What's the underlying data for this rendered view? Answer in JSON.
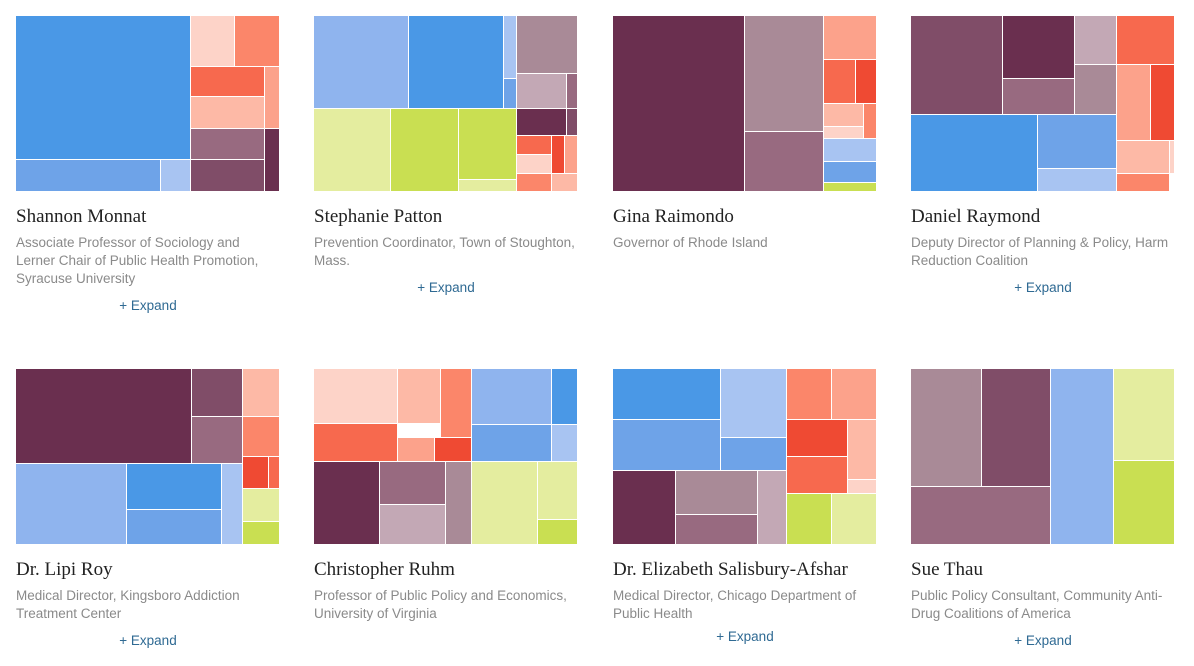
{
  "palette": {
    "blue_dark": "#4a98e6",
    "blue_mid": "#6ea3e8",
    "blue_light": "#8fb4ee",
    "blue_pale": "#a8c4f2",
    "plum_dark": "#6a2f4f",
    "plum": "#804d68",
    "mauve": "#986a80",
    "mauve_light": "#a98a97",
    "mauve_pale": "#c3a8b5",
    "red": "#ef4a33",
    "coral": "#f7694e",
    "salmon": "#fb866a",
    "peach": "#fca28b",
    "peach_light": "#fdb9a6",
    "peach_pale": "#fdd3c8",
    "green": "#c9df52",
    "green_light": "#e4ed9f"
  },
  "people": [
    {
      "name": "Shannon Monnat",
      "role": "Associate Professor of Sociology and Lerner Chair of Public Health Promotion, Syracuse University",
      "expand": "+ Expand"
    },
    {
      "name": "Stephanie Patton",
      "role": "Prevention Coordinator, Town of Stoughton, Mass.",
      "expand": "+ Expand"
    },
    {
      "name": "Gina Raimondo",
      "role": "Governor of Rhode Island",
      "expand": ""
    },
    {
      "name": "Daniel Raymond",
      "role": "Deputy Director of Planning & Policy, Harm Reduction Coalition",
      "expand": "+ Expand"
    },
    {
      "name": "Dr. Lipi Roy",
      "role": "Medical Director, Kingsboro Addiction Treatment Center",
      "expand": "+ Expand"
    },
    {
      "name": "Christopher Ruhm",
      "role": "Professor of Public Policy and Economics, University of Virginia",
      "expand": "+ Expand"
    },
    {
      "name": "Dr. Elizabeth Salisbury-Afshar",
      "role": "Medical Director, Chicago Department of Public Health",
      "expand": "+ Expand"
    },
    {
      "name": "Sue Thau",
      "role": "Public Policy Consultant, Community Anti-Drug Coalitions of America",
      "expand": "+ Expand"
    }
  ],
  "chart_data": [
    {
      "type": "treemap",
      "cells": [
        {
          "c": "blue_dark",
          "x": 0,
          "y": 0,
          "w": 0.664,
          "h": 0.82
        },
        {
          "c": "blue_mid",
          "x": 0,
          "y": 0.82,
          "w": 0.551,
          "h": 0.18
        },
        {
          "c": "blue_pale",
          "x": 0.551,
          "y": 0.82,
          "w": 0.113,
          "h": 0.18
        },
        {
          "c": "peach_pale",
          "x": 0.664,
          "y": 0,
          "w": 0.166,
          "h": 0.29
        },
        {
          "c": "salmon",
          "x": 0.83,
          "y": 0,
          "w": 0.17,
          "h": 0.29
        },
        {
          "c": "coral",
          "x": 0.664,
          "y": 0.29,
          "w": 0.28,
          "h": 0.17
        },
        {
          "c": "peach",
          "x": 0.944,
          "y": 0.29,
          "w": 0.056,
          "h": 0.35
        },
        {
          "c": "peach_light",
          "x": 0.664,
          "y": 0.46,
          "w": 0.28,
          "h": 0.18
        },
        {
          "c": "mauve",
          "x": 0.664,
          "y": 0.64,
          "w": 0.28,
          "h": 0.18
        },
        {
          "c": "plum",
          "x": 0.664,
          "y": 0.82,
          "w": 0.28,
          "h": 0.18
        },
        {
          "c": "plum_dark",
          "x": 0.944,
          "y": 0.64,
          "w": 0.056,
          "h": 0.36
        }
      ]
    },
    {
      "type": "treemap",
      "cells": [
        {
          "c": "blue_light",
          "x": 0,
          "y": 0,
          "w": 0.36,
          "h": 0.53
        },
        {
          "c": "blue_dark",
          "x": 0.36,
          "y": 0,
          "w": 0.36,
          "h": 0.53
        },
        {
          "c": "blue_pale",
          "x": 0.72,
          "y": 0,
          "w": 0.05,
          "h": 0.36
        },
        {
          "c": "blue_mid",
          "x": 0.72,
          "y": 0.36,
          "w": 0.05,
          "h": 0.17
        },
        {
          "c": "green_light",
          "x": 0,
          "y": 0.53,
          "w": 0.29,
          "h": 0.47
        },
        {
          "c": "green",
          "x": 0.29,
          "y": 0.53,
          "w": 0.26,
          "h": 0.47
        },
        {
          "c": "green",
          "x": 0.55,
          "y": 0.53,
          "w": 0.22,
          "h": 0.4
        },
        {
          "c": "green_light",
          "x": 0.55,
          "y": 0.93,
          "w": 0.22,
          "h": 0.07
        },
        {
          "c": "mauve_light",
          "x": 0.77,
          "y": 0,
          "w": 0.23,
          "h": 0.33
        },
        {
          "c": "mauve_pale",
          "x": 0.77,
          "y": 0.33,
          "w": 0.19,
          "h": 0.2
        },
        {
          "c": "mauve",
          "x": 0.96,
          "y": 0.33,
          "w": 0.04,
          "h": 0.2
        },
        {
          "c": "plum_dark",
          "x": 0.77,
          "y": 0.53,
          "w": 0.19,
          "h": 0.15
        },
        {
          "c": "plum",
          "x": 0.96,
          "y": 0.53,
          "w": 0.04,
          "h": 0.15
        },
        {
          "c": "coral",
          "x": 0.77,
          "y": 0.68,
          "w": 0.13,
          "h": 0.11
        },
        {
          "c": "red",
          "x": 0.9,
          "y": 0.68,
          "w": 0.05,
          "h": 0.22
        },
        {
          "c": "peach",
          "x": 0.95,
          "y": 0.68,
          "w": 0.05,
          "h": 0.22
        },
        {
          "c": "peach_pale",
          "x": 0.77,
          "y": 0.79,
          "w": 0.13,
          "h": 0.11
        },
        {
          "c": "salmon",
          "x": 0.77,
          "y": 0.9,
          "w": 0.13,
          "h": 0.1
        },
        {
          "c": "peach_light",
          "x": 0.9,
          "y": 0.9,
          "w": 0.1,
          "h": 0.1
        }
      ]
    },
    {
      "type": "treemap",
      "cells": [
        {
          "c": "plum_dark",
          "x": 0,
          "y": 0,
          "w": 0.5,
          "h": 1
        },
        {
          "c": "mauve_light",
          "x": 0.5,
          "y": 0,
          "w": 0.3,
          "h": 0.66
        },
        {
          "c": "mauve",
          "x": 0.5,
          "y": 0.66,
          "w": 0.3,
          "h": 0.34
        },
        {
          "c": "peach",
          "x": 0.8,
          "y": 0,
          "w": 0.2,
          "h": 0.25
        },
        {
          "c": "coral",
          "x": 0.8,
          "y": 0.25,
          "w": 0.12,
          "h": 0.25
        },
        {
          "c": "red",
          "x": 0.92,
          "y": 0.25,
          "w": 0.08,
          "h": 0.25
        },
        {
          "c": "peach_light",
          "x": 0.8,
          "y": 0.5,
          "w": 0.15,
          "h": 0.13
        },
        {
          "c": "peach_pale",
          "x": 0.8,
          "y": 0.63,
          "w": 0.15,
          "h": 0.07
        },
        {
          "c": "salmon",
          "x": 0.95,
          "y": 0.5,
          "w": 0.05,
          "h": 0.2
        },
        {
          "c": "blue_pale",
          "x": 0.8,
          "y": 0.7,
          "w": 0.2,
          "h": 0.13
        },
        {
          "c": "blue_mid",
          "x": 0.8,
          "y": 0.83,
          "w": 0.2,
          "h": 0.12
        },
        {
          "c": "green",
          "x": 0.8,
          "y": 0.95,
          "w": 0.2,
          "h": 0.05
        }
      ]
    },
    {
      "type": "treemap",
      "cells": [
        {
          "c": "plum",
          "x": 0,
          "y": 0,
          "w": 0.35,
          "h": 0.56
        },
        {
          "c": "plum_dark",
          "x": 0.35,
          "y": 0,
          "w": 0.27,
          "h": 0.36
        },
        {
          "c": "mauve",
          "x": 0.35,
          "y": 0.36,
          "w": 0.27,
          "h": 0.2
        },
        {
          "c": "mauve_pale",
          "x": 0.62,
          "y": 0,
          "w": 0.16,
          "h": 0.28
        },
        {
          "c": "mauve_light",
          "x": 0.62,
          "y": 0.28,
          "w": 0.16,
          "h": 0.28
        },
        {
          "c": "coral",
          "x": 0.78,
          "y": 0,
          "w": 0.22,
          "h": 0.28
        },
        {
          "c": "peach",
          "x": 0.78,
          "y": 0.28,
          "w": 0.13,
          "h": 0.43
        },
        {
          "c": "red",
          "x": 0.91,
          "y": 0.28,
          "w": 0.09,
          "h": 0.43
        },
        {
          "c": "blue_dark",
          "x": 0,
          "y": 0.56,
          "w": 0.48,
          "h": 0.44
        },
        {
          "c": "blue_mid",
          "x": 0.48,
          "y": 0.56,
          "w": 0.3,
          "h": 0.31
        },
        {
          "c": "blue_pale",
          "x": 0.48,
          "y": 0.87,
          "w": 0.3,
          "h": 0.13
        },
        {
          "c": "peach_light",
          "x": 0.78,
          "y": 0.71,
          "w": 0.2,
          "h": 0.19
        },
        {
          "c": "peach_pale",
          "x": 0.98,
          "y": 0.71,
          "w": 0.02,
          "h": 0.19
        },
        {
          "c": "salmon",
          "x": 0.78,
          "y": 0.9,
          "w": 0.2,
          "h": 0.1
        }
      ]
    },
    {
      "type": "treemap",
      "cells": [
        {
          "c": "plum_dark",
          "x": 0,
          "y": 0,
          "w": 0.665,
          "h": 0.54
        },
        {
          "c": "plum",
          "x": 0.665,
          "y": 0,
          "w": 0.195,
          "h": 0.27
        },
        {
          "c": "mauve",
          "x": 0.665,
          "y": 0.27,
          "w": 0.195,
          "h": 0.27
        },
        {
          "c": "peach_light",
          "x": 0.86,
          "y": 0,
          "w": 0.14,
          "h": 0.27
        },
        {
          "c": "salmon",
          "x": 0.86,
          "y": 0.27,
          "w": 0.14,
          "h": 0.23
        },
        {
          "c": "red",
          "x": 0.86,
          "y": 0.5,
          "w": 0.1,
          "h": 0.18
        },
        {
          "c": "coral",
          "x": 0.96,
          "y": 0.5,
          "w": 0.04,
          "h": 0.18
        },
        {
          "c": "blue_light",
          "x": 0,
          "y": 0.54,
          "w": 0.42,
          "h": 0.46
        },
        {
          "c": "blue_dark",
          "x": 0.42,
          "y": 0.54,
          "w": 0.36,
          "h": 0.26
        },
        {
          "c": "blue_mid",
          "x": 0.42,
          "y": 0.8,
          "w": 0.36,
          "h": 0.2
        },
        {
          "c": "blue_pale",
          "x": 0.78,
          "y": 0.54,
          "w": 0.08,
          "h": 0.46
        },
        {
          "c": "green_light",
          "x": 0.86,
          "y": 0.68,
          "w": 0.14,
          "h": 0.19
        },
        {
          "c": "green",
          "x": 0.86,
          "y": 0.87,
          "w": 0.14,
          "h": 0.13
        }
      ]
    },
    {
      "type": "treemap",
      "cells": [
        {
          "c": "peach_pale",
          "x": 0,
          "y": 0,
          "w": 0.32,
          "h": 0.31
        },
        {
          "c": "peach_light",
          "x": 0.32,
          "y": 0,
          "w": 0.16,
          "h": 0.31
        },
        {
          "c": "salmon",
          "x": 0.48,
          "y": 0,
          "w": 0.12,
          "h": 0.39
        },
        {
          "c": "coral",
          "x": 0,
          "y": 0.31,
          "w": 0.32,
          "h": 0.22
        },
        {
          "c": "peach",
          "x": 0.32,
          "y": 0.39,
          "w": 0.14,
          "h": 0.14
        },
        {
          "c": "red",
          "x": 0.46,
          "y": 0.39,
          "w": 0.14,
          "h": 0.14
        },
        {
          "c": "blue_light",
          "x": 0.6,
          "y": 0,
          "w": 0.3,
          "h": 0.32
        },
        {
          "c": "blue_dark",
          "x": 0.9,
          "y": 0,
          "w": 0.1,
          "h": 0.32
        },
        {
          "c": "blue_mid",
          "x": 0.6,
          "y": 0.32,
          "w": 0.3,
          "h": 0.21
        },
        {
          "c": "blue_pale",
          "x": 0.9,
          "y": 0.32,
          "w": 0.1,
          "h": 0.21
        },
        {
          "c": "plum_dark",
          "x": 0,
          "y": 0.53,
          "w": 0.25,
          "h": 0.47
        },
        {
          "c": "mauve",
          "x": 0.25,
          "y": 0.53,
          "w": 0.25,
          "h": 0.24
        },
        {
          "c": "mauve_pale",
          "x": 0.25,
          "y": 0.77,
          "w": 0.25,
          "h": 0.23
        },
        {
          "c": "mauve_light",
          "x": 0.5,
          "y": 0.53,
          "w": 0.1,
          "h": 0.47
        },
        {
          "c": "green_light",
          "x": 0.6,
          "y": 0.53,
          "w": 0.25,
          "h": 0.47
        },
        {
          "c": "green_light",
          "x": 0.85,
          "y": 0.53,
          "w": 0.15,
          "h": 0.33
        },
        {
          "c": "green",
          "x": 0.85,
          "y": 0.86,
          "w": 0.15,
          "h": 0.14
        }
      ]
    },
    {
      "type": "treemap",
      "cells": [
        {
          "c": "blue_dark",
          "x": 0,
          "y": 0,
          "w": 0.41,
          "h": 0.29
        },
        {
          "c": "blue_mid",
          "x": 0,
          "y": 0.29,
          "w": 0.41,
          "h": 0.29
        },
        {
          "c": "blue_pale",
          "x": 0.41,
          "y": 0,
          "w": 0.25,
          "h": 0.39
        },
        {
          "c": "blue_mid",
          "x": 0.41,
          "y": 0.39,
          "w": 0.25,
          "h": 0.19
        },
        {
          "c": "plum_dark",
          "x": 0,
          "y": 0.58,
          "w": 0.24,
          "h": 0.42
        },
        {
          "c": "mauve_light",
          "x": 0.24,
          "y": 0.58,
          "w": 0.31,
          "h": 0.25
        },
        {
          "c": "mauve",
          "x": 0.24,
          "y": 0.83,
          "w": 0.31,
          "h": 0.17
        },
        {
          "c": "mauve_pale",
          "x": 0.55,
          "y": 0.58,
          "w": 0.11,
          "h": 0.42
        },
        {
          "c": "salmon",
          "x": 0.66,
          "y": 0,
          "w": 0.17,
          "h": 0.29
        },
        {
          "c": "peach",
          "x": 0.83,
          "y": 0,
          "w": 0.17,
          "h": 0.29
        },
        {
          "c": "red",
          "x": 0.66,
          "y": 0.29,
          "w": 0.23,
          "h": 0.21
        },
        {
          "c": "peach_light",
          "x": 0.89,
          "y": 0.29,
          "w": 0.11,
          "h": 0.34
        },
        {
          "c": "coral",
          "x": 0.66,
          "y": 0.5,
          "w": 0.23,
          "h": 0.21
        },
        {
          "c": "peach_pale",
          "x": 0.89,
          "y": 0.63,
          "w": 0.11,
          "h": 0.08
        },
        {
          "c": "green",
          "x": 0.66,
          "y": 0.71,
          "w": 0.17,
          "h": 0.29
        },
        {
          "c": "green_light",
          "x": 0.83,
          "y": 0.71,
          "w": 0.17,
          "h": 0.29
        }
      ]
    },
    {
      "type": "treemap",
      "cells": [
        {
          "c": "mauve_light",
          "x": 0,
          "y": 0,
          "w": 0.27,
          "h": 0.67
        },
        {
          "c": "plum",
          "x": 0.27,
          "y": 0,
          "w": 0.26,
          "h": 0.67
        },
        {
          "c": "mauve",
          "x": 0,
          "y": 0.67,
          "w": 0.53,
          "h": 0.33
        },
        {
          "c": "blue_light",
          "x": 0.53,
          "y": 0,
          "w": 0.24,
          "h": 1
        },
        {
          "c": "green_light",
          "x": 0.77,
          "y": 0,
          "w": 0.23,
          "h": 0.52
        },
        {
          "c": "green",
          "x": 0.77,
          "y": 0.52,
          "w": 0.23,
          "h": 0.48
        }
      ]
    }
  ]
}
